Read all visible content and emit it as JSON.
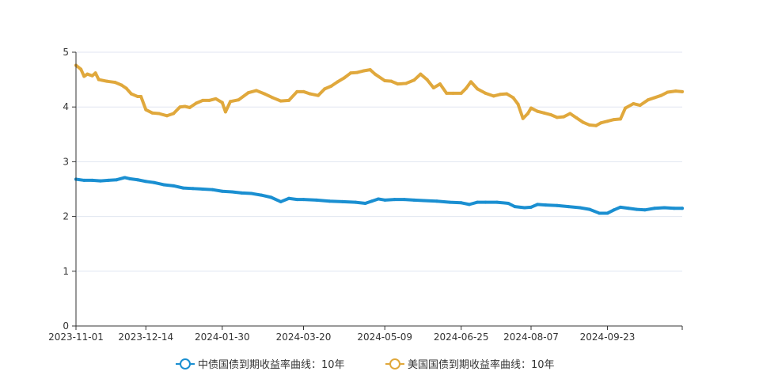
{
  "chart_data": {
    "type": "line",
    "title": "",
    "xlabel": "",
    "ylabel": "",
    "ylim": [
      0,
      5
    ],
    "y_ticks": [
      "0",
      "1",
      "2",
      "3",
      "4",
      "5"
    ],
    "x_ticks": [
      "2023-11-01",
      "2023-12-14",
      "2024-01-30",
      "2024-03-20",
      "2024-05-09",
      "2024-06-25",
      "2024-08-07",
      "2024-09-23"
    ],
    "x_range": [
      "2023-11-01",
      "2024-11-08"
    ],
    "grid": "horizontal",
    "legend_position": "bottom",
    "series": [
      {
        "name": "中债国债到期收益率曲线：10年",
        "color": "#1a8fd1",
        "points": [
          [
            "2023-11-01",
            2.68
          ],
          [
            "2023-11-06",
            2.66
          ],
          [
            "2023-11-11",
            2.66
          ],
          [
            "2023-11-16",
            2.65
          ],
          [
            "2023-11-21",
            2.66
          ],
          [
            "2023-11-26",
            2.67
          ],
          [
            "2023-12-01",
            2.71
          ],
          [
            "2023-12-04",
            2.69
          ],
          [
            "2023-12-09",
            2.67
          ],
          [
            "2023-12-14",
            2.64
          ],
          [
            "2023-12-19",
            2.62
          ],
          [
            "2023-12-25",
            2.58
          ],
          [
            "2023-12-31",
            2.56
          ],
          [
            "2024-01-06",
            2.52
          ],
          [
            "2024-01-12",
            2.51
          ],
          [
            "2024-01-18",
            2.5
          ],
          [
            "2024-01-24",
            2.49
          ],
          [
            "2024-01-30",
            2.46
          ],
          [
            "2024-02-05",
            2.45
          ],
          [
            "2024-02-11",
            2.43
          ],
          [
            "2024-02-17",
            2.42
          ],
          [
            "2024-02-23",
            2.39
          ],
          [
            "2024-02-29",
            2.35
          ],
          [
            "2024-03-06",
            2.27
          ],
          [
            "2024-03-11",
            2.33
          ],
          [
            "2024-03-16",
            2.31
          ],
          [
            "2024-03-20",
            2.31
          ],
          [
            "2024-03-28",
            2.3
          ],
          [
            "2024-04-05",
            2.28
          ],
          [
            "2024-04-13",
            2.27
          ],
          [
            "2024-04-21",
            2.26
          ],
          [
            "2024-04-27",
            2.24
          ],
          [
            "2024-05-01",
            2.28
          ],
          [
            "2024-05-05",
            2.32
          ],
          [
            "2024-05-09",
            2.3
          ],
          [
            "2024-05-15",
            2.31
          ],
          [
            "2024-05-21",
            2.31
          ],
          [
            "2024-05-27",
            2.3
          ],
          [
            "2024-06-02",
            2.29
          ],
          [
            "2024-06-10",
            2.28
          ],
          [
            "2024-06-18",
            2.26
          ],
          [
            "2024-06-25",
            2.25
          ],
          [
            "2024-06-30",
            2.22
          ],
          [
            "2024-07-05",
            2.26
          ],
          [
            "2024-07-10",
            2.26
          ],
          [
            "2024-07-17",
            2.26
          ],
          [
            "2024-07-24",
            2.24
          ],
          [
            "2024-07-28",
            2.18
          ],
          [
            "2024-08-03",
            2.16
          ],
          [
            "2024-08-07",
            2.17
          ],
          [
            "2024-08-11",
            2.22
          ],
          [
            "2024-08-16",
            2.21
          ],
          [
            "2024-08-23",
            2.2
          ],
          [
            "2024-08-30",
            2.18
          ],
          [
            "2024-09-06",
            2.16
          ],
          [
            "2024-09-12",
            2.13
          ],
          [
            "2024-09-18",
            2.06
          ],
          [
            "2024-09-23",
            2.06
          ],
          [
            "2024-09-27",
            2.12
          ],
          [
            "2024-10-01",
            2.17
          ],
          [
            "2024-10-06",
            2.15
          ],
          [
            "2024-10-11",
            2.13
          ],
          [
            "2024-10-16",
            2.12
          ],
          [
            "2024-10-22",
            2.15
          ],
          [
            "2024-10-28",
            2.16
          ],
          [
            "2024-11-03",
            2.15
          ],
          [
            "2024-11-08",
            2.15
          ]
        ]
      },
      {
        "name": "美国国债到期收益率曲线：10年",
        "color": "#e0a83c",
        "points": [
          [
            "2023-11-01",
            4.76
          ],
          [
            "2023-11-04",
            4.69
          ],
          [
            "2023-11-06",
            4.56
          ],
          [
            "2023-11-08",
            4.6
          ],
          [
            "2023-11-11",
            4.57
          ],
          [
            "2023-11-13",
            4.62
          ],
          [
            "2023-11-15",
            4.5
          ],
          [
            "2023-11-20",
            4.47
          ],
          [
            "2023-11-25",
            4.45
          ],
          [
            "2023-11-29",
            4.4
          ],
          [
            "2023-12-02",
            4.34
          ],
          [
            "2023-12-05",
            4.24
          ],
          [
            "2023-12-09",
            4.19
          ],
          [
            "2023-12-11",
            4.19
          ],
          [
            "2023-12-14",
            3.95
          ],
          [
            "2023-12-18",
            3.89
          ],
          [
            "2023-12-22",
            3.88
          ],
          [
            "2023-12-27",
            3.84
          ],
          [
            "2023-12-31",
            3.88
          ],
          [
            "2024-01-04",
            4.0
          ],
          [
            "2024-01-07",
            4.01
          ],
          [
            "2024-01-10",
            3.99
          ],
          [
            "2024-01-14",
            4.07
          ],
          [
            "2024-01-18",
            4.12
          ],
          [
            "2024-01-22",
            4.12
          ],
          [
            "2024-01-26",
            4.15
          ],
          [
            "2024-01-30",
            4.08
          ],
          [
            "2024-02-01",
            3.91
          ],
          [
            "2024-02-04",
            4.1
          ],
          [
            "2024-02-09",
            4.13
          ],
          [
            "2024-02-15",
            4.26
          ],
          [
            "2024-02-20",
            4.3
          ],
          [
            "2024-02-25",
            4.24
          ],
          [
            "2024-03-01",
            4.17
          ],
          [
            "2024-03-06",
            4.11
          ],
          [
            "2024-03-11",
            4.12
          ],
          [
            "2024-03-16",
            4.28
          ],
          [
            "2024-03-20",
            4.28
          ],
          [
            "2024-03-24",
            4.24
          ],
          [
            "2024-03-29",
            4.21
          ],
          [
            "2024-04-02",
            4.33
          ],
          [
            "2024-04-06",
            4.38
          ],
          [
            "2024-04-10",
            4.46
          ],
          [
            "2024-04-14",
            4.53
          ],
          [
            "2024-04-18",
            4.62
          ],
          [
            "2024-04-22",
            4.63
          ],
          [
            "2024-04-26",
            4.66
          ],
          [
            "2024-04-30",
            4.68
          ],
          [
            "2024-05-03",
            4.6
          ],
          [
            "2024-05-09",
            4.48
          ],
          [
            "2024-05-13",
            4.47
          ],
          [
            "2024-05-17",
            4.42
          ],
          [
            "2024-05-22",
            4.43
          ],
          [
            "2024-05-27",
            4.49
          ],
          [
            "2024-05-31",
            4.6
          ],
          [
            "2024-06-04",
            4.5
          ],
          [
            "2024-06-08",
            4.35
          ],
          [
            "2024-06-12",
            4.42
          ],
          [
            "2024-06-16",
            4.25
          ],
          [
            "2024-06-20",
            4.25
          ],
          [
            "2024-06-25",
            4.25
          ],
          [
            "2024-06-28",
            4.34
          ],
          [
            "2024-07-01",
            4.46
          ],
          [
            "2024-07-05",
            4.33
          ],
          [
            "2024-07-10",
            4.25
          ],
          [
            "2024-07-15",
            4.2
          ],
          [
            "2024-07-19",
            4.23
          ],
          [
            "2024-07-23",
            4.24
          ],
          [
            "2024-07-27",
            4.17
          ],
          [
            "2024-07-30",
            4.05
          ],
          [
            "2024-08-02",
            3.79
          ],
          [
            "2024-08-05",
            3.88
          ],
          [
            "2024-08-07",
            3.98
          ],
          [
            "2024-08-11",
            3.92
          ],
          [
            "2024-08-15",
            3.89
          ],
          [
            "2024-08-19",
            3.86
          ],
          [
            "2024-08-23",
            3.81
          ],
          [
            "2024-08-27",
            3.82
          ],
          [
            "2024-08-31",
            3.88
          ],
          [
            "2024-09-04",
            3.8
          ],
          [
            "2024-09-08",
            3.72
          ],
          [
            "2024-09-12",
            3.67
          ],
          [
            "2024-09-16",
            3.66
          ],
          [
            "2024-09-19",
            3.71
          ],
          [
            "2024-09-23",
            3.74
          ],
          [
            "2024-09-27",
            3.77
          ],
          [
            "2024-10-01",
            3.78
          ],
          [
            "2024-10-04",
            3.98
          ],
          [
            "2024-10-09",
            4.06
          ],
          [
            "2024-10-13",
            4.03
          ],
          [
            "2024-10-18",
            4.13
          ],
          [
            "2024-10-22",
            4.17
          ],
          [
            "2024-10-26",
            4.21
          ],
          [
            "2024-10-30",
            4.27
          ],
          [
            "2024-11-04",
            4.29
          ],
          [
            "2024-11-08",
            4.28
          ]
        ]
      }
    ]
  }
}
